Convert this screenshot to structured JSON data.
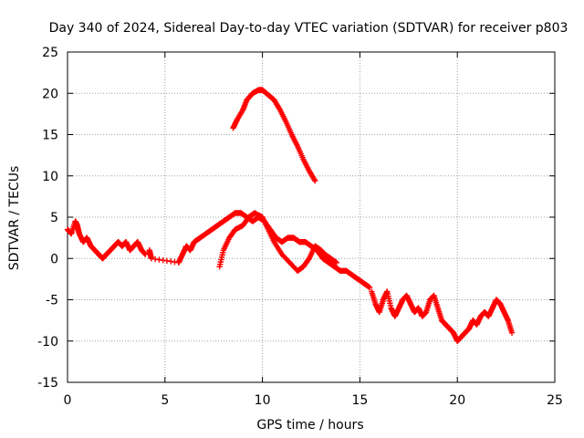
{
  "chart_data": {
    "type": "scatter",
    "title": "Day 340 of 2024, Sidereal Day-to-day VTEC variation (SDTVAR) for receiver p803",
    "xlabel": "GPS time / hours",
    "ylabel": "SDTVAR / TECUs",
    "xlim": [
      0,
      25
    ],
    "ylim": [
      -15,
      25
    ],
    "xticks": [
      0,
      5,
      10,
      15,
      20,
      25
    ],
    "yticks": [
      -15,
      -10,
      -5,
      0,
      5,
      10,
      15,
      20,
      25
    ],
    "grid": true,
    "marker": "plus",
    "color": "#ff0000",
    "series": [
      {
        "name": "track-1",
        "x": [
          0.0,
          0.2,
          0.4,
          0.5,
          0.6,
          0.8,
          1.0,
          1.2,
          1.4,
          1.6,
          1.8,
          2.0,
          2.2,
          2.4,
          2.6,
          2.8,
          3.0,
          3.2,
          3.4,
          3.6,
          3.8,
          4.0
        ],
        "y": [
          3.5,
          3.0,
          4.5,
          4.0,
          3.0,
          2.0,
          2.5,
          1.5,
          1.0,
          0.5,
          0.0,
          0.5,
          1.0,
          1.5,
          2.0,
          1.5,
          2.0,
          1.0,
          1.5,
          2.0,
          1.0,
          0.5
        ]
      },
      {
        "name": "track-2",
        "x": [
          4.2,
          4.3,
          5.7,
          5.9,
          6.1,
          6.3,
          6.5,
          6.8,
          7.1,
          7.4,
          7.7,
          8.0,
          8.3,
          8.6,
          8.9,
          9.2,
          9.5,
          9.8,
          10.1,
          10.4,
          10.7,
          11.0,
          11.3,
          11.6,
          11.9,
          12.2,
          12.5,
          12.8,
          13.1,
          13.4,
          13.7,
          14.0,
          14.3,
          14.6,
          14.9,
          15.2,
          15.5
        ],
        "y": [
          1.0,
          0.0,
          -0.5,
          0.5,
          1.5,
          1.0,
          2.0,
          2.5,
          3.0,
          3.5,
          4.0,
          4.5,
          5.0,
          5.5,
          5.5,
          5.0,
          4.5,
          5.0,
          4.5,
          3.5,
          2.5,
          2.0,
          2.5,
          2.5,
          2.0,
          2.0,
          1.5,
          1.0,
          0.0,
          -0.5,
          -1.0,
          -1.5,
          -1.5,
          -2.0,
          -2.5,
          -3.0,
          -3.5
        ]
      },
      {
        "name": "track-3",
        "x": [
          7.8,
          8.0,
          8.3,
          8.6,
          9.0,
          9.3,
          9.6,
          10.0,
          10.3,
          10.6,
          11.0,
          11.4,
          11.8,
          12.1,
          12.4,
          12.7,
          13.0,
          13.2,
          13.5,
          13.8
        ],
        "y": [
          -1.0,
          1.0,
          2.5,
          3.5,
          4.0,
          5.0,
          5.5,
          5.0,
          3.5,
          2.0,
          0.5,
          -0.5,
          -1.5,
          -1.0,
          0.0,
          1.5,
          1.0,
          0.5,
          0.0,
          -0.5
        ]
      },
      {
        "name": "track-4",
        "x": [
          8.5,
          8.7,
          9.0,
          9.2,
          9.5,
          9.8,
          10.0,
          10.3,
          10.6,
          10.9,
          11.2,
          11.5,
          11.8,
          12.1,
          12.4,
          12.7
        ],
        "y": [
          15.8,
          16.8,
          18.0,
          19.2,
          20.0,
          20.4,
          20.4,
          19.8,
          19.2,
          18.0,
          16.6,
          15.0,
          13.6,
          12.0,
          10.6,
          9.4
        ]
      },
      {
        "name": "track-5",
        "x": [
          15.6,
          15.8,
          16.0,
          16.2,
          16.4,
          16.6,
          16.8,
          17.0,
          17.2,
          17.4,
          17.6,
          17.8,
          18.0,
          18.2,
          18.4,
          18.6,
          18.8,
          19.0,
          19.2,
          19.4,
          19.6,
          19.8,
          20.0,
          20.2,
          20.4,
          20.6,
          20.8,
          21.0,
          21.2,
          21.4,
          21.6,
          21.8,
          22.0,
          22.2,
          22.4,
          22.6,
          22.8
        ],
        "y": [
          -4.0,
          -5.5,
          -6.5,
          -5.0,
          -4.0,
          -6.0,
          -7.0,
          -6.0,
          -5.0,
          -4.5,
          -5.5,
          -6.5,
          -6.0,
          -7.0,
          -6.5,
          -5.0,
          -4.5,
          -6.0,
          -7.5,
          -8.0,
          -8.5,
          -9.0,
          -10.0,
          -9.5,
          -9.0,
          -8.5,
          -7.5,
          -8.0,
          -7.0,
          -6.5,
          -7.0,
          -6.0,
          -5.0,
          -5.5,
          -6.5,
          -7.5,
          -9.0
        ]
      }
    ]
  }
}
